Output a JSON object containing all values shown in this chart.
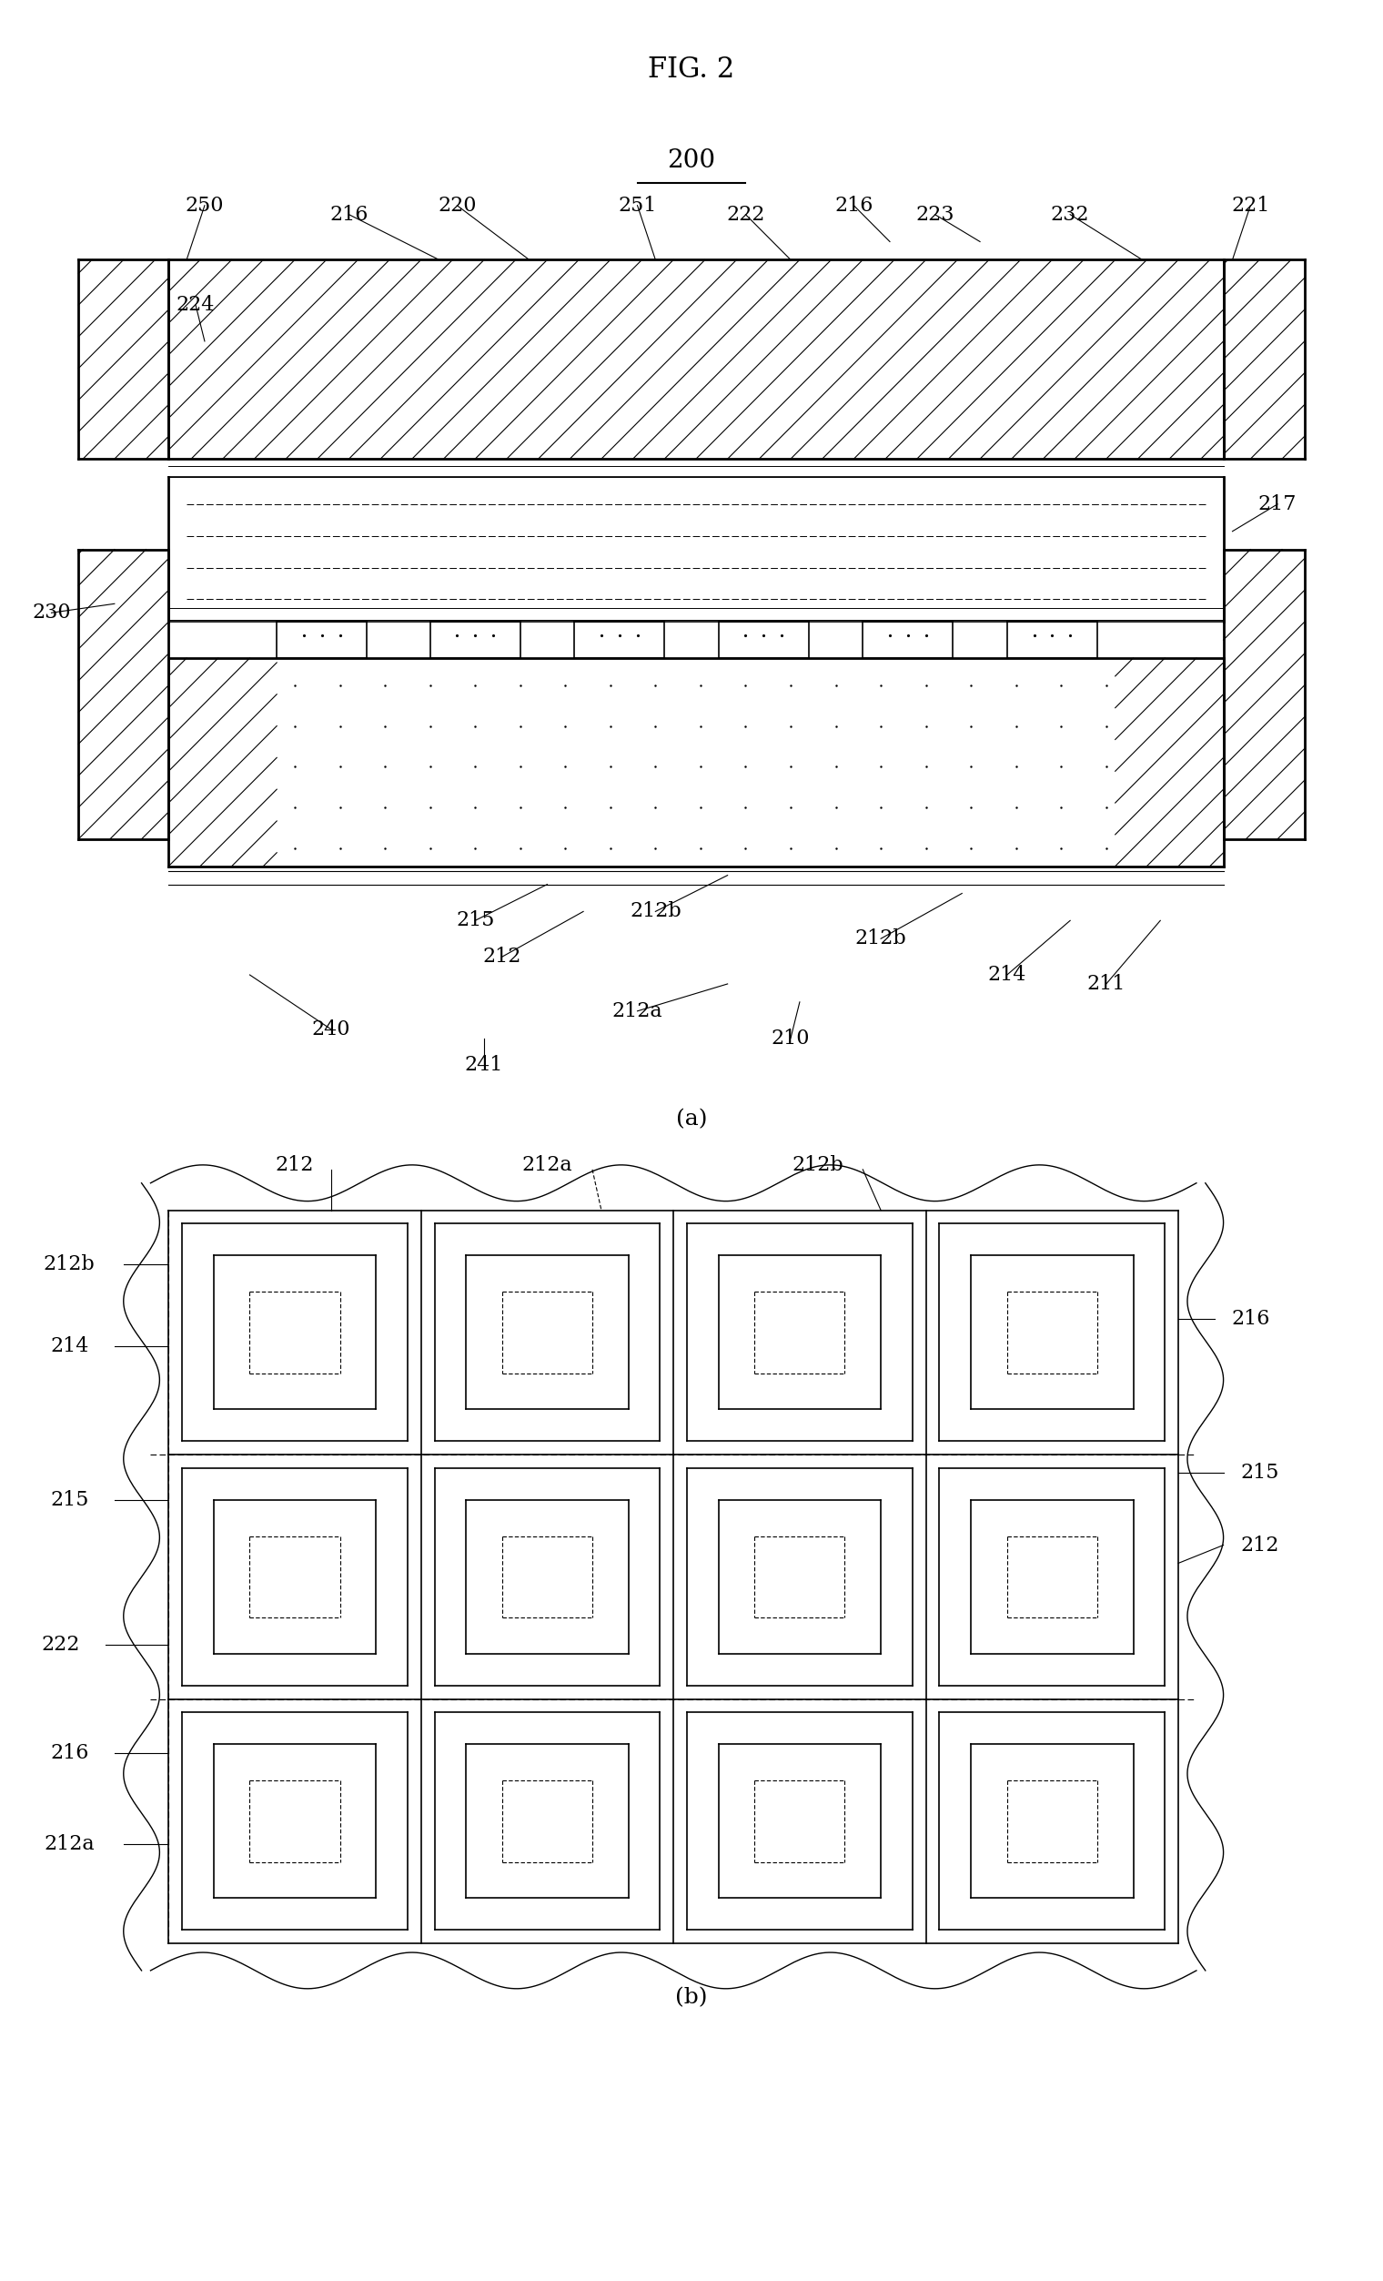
{
  "title": "FIG. 2",
  "bg_color": "#ffffff",
  "fig_width": 15.2,
  "fig_height": 25.06,
  "label_200": "200",
  "part_a_label": "(a)",
  "part_b_label": "(b)"
}
